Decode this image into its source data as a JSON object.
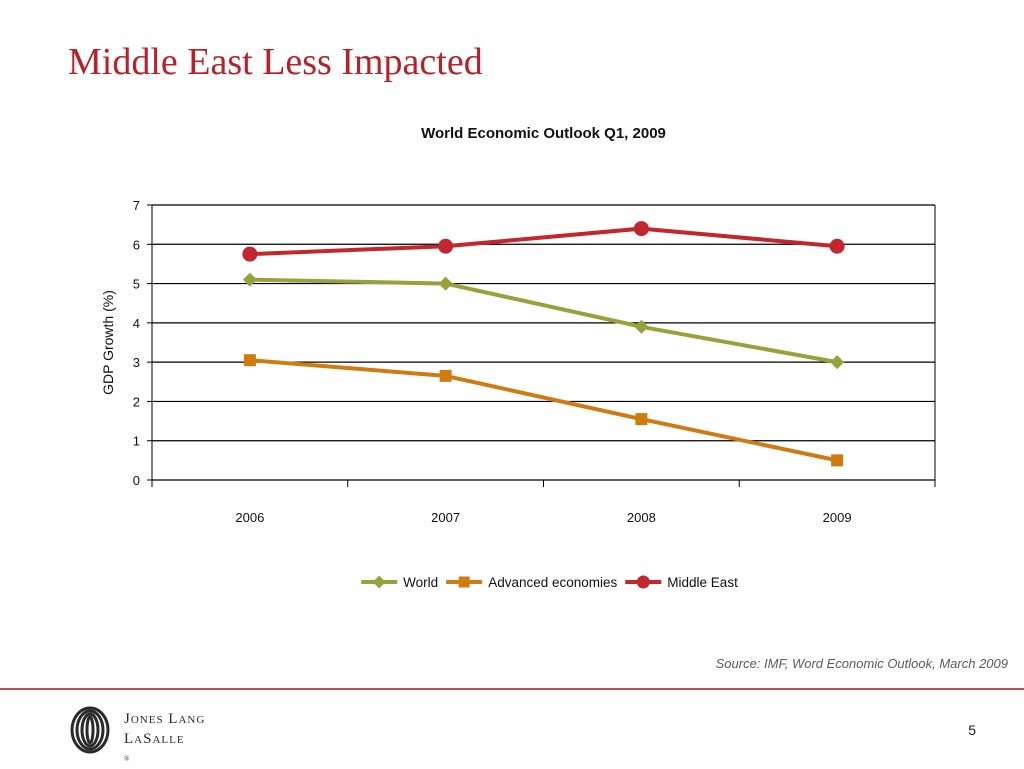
{
  "slide": {
    "title": "Middle East Less Impacted",
    "source": "Source:  IMF, Word Economic Outlook, March 2009",
    "page_number": "5"
  },
  "logo": {
    "line1": "Jones Lang",
    "line2": "LaSalle",
    "mark": "®"
  },
  "colors": {
    "title": "#b8202a",
    "world": "#9aa03a",
    "advanced": "#d07a12",
    "middle_east": "#c4262e",
    "footer_rule": "#c0504d"
  },
  "chart_data": {
    "type": "line",
    "title": "World Economic Outlook Q1, 2009",
    "xlabel": "",
    "ylabel": "GDP Growth (%)",
    "categories": [
      "2006",
      "2007",
      "2008",
      "2009"
    ],
    "ylim": [
      0,
      7
    ],
    "yticks": [
      0,
      1,
      2,
      3,
      4,
      5,
      6,
      7
    ],
    "grid": true,
    "legend_position": "bottom",
    "series": [
      {
        "name": "World",
        "values": [
          5.1,
          5.0,
          3.9,
          3.0
        ],
        "color": "#9aa03a",
        "marker": "diamond"
      },
      {
        "name": "Advanced economies",
        "values": [
          3.05,
          2.65,
          1.55,
          0.5
        ],
        "color": "#d07a12",
        "marker": "square"
      },
      {
        "name": "Middle East",
        "values": [
          5.75,
          5.95,
          6.4,
          5.95
        ],
        "color": "#c4262e",
        "marker": "circle"
      }
    ]
  }
}
